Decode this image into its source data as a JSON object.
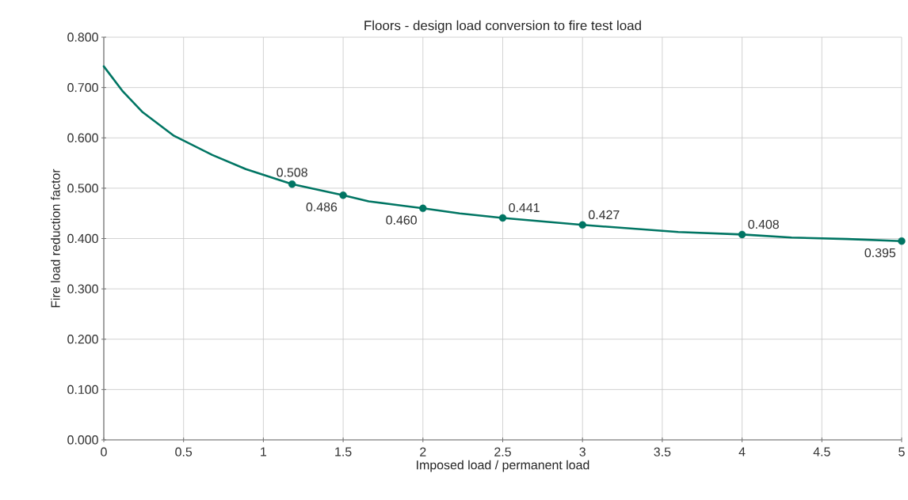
{
  "chart_data": {
    "type": "line",
    "title": "Floors - design load conversion to fire test load",
    "xlabel": "Imposed load / permanent load",
    "ylabel": "Fire load reduction factor",
    "series": [
      {
        "type": "line",
        "color": "#007563",
        "marker": "none",
        "x": [
          0,
          0.12,
          0.24,
          0.44,
          0.68,
          0.89,
          1.18,
          1.5,
          1.66,
          2.0,
          2.23,
          2.5,
          3.0,
          3.6,
          4.0,
          4.31,
          4.66,
          5.0
        ],
        "values": [
          0.742,
          0.692,
          0.652,
          0.604,
          0.566,
          0.538,
          0.508,
          0.486,
          0.474,
          0.46,
          0.45,
          0.441,
          0.427,
          0.413,
          0.408,
          0.402,
          0.399,
          0.395
        ]
      },
      {
        "type": "scatter",
        "color": "#007563",
        "marker": "circle",
        "data_labels": true,
        "x": [
          1.18,
          1.5,
          2.0,
          2.5,
          3.0,
          4.0,
          5.0
        ],
        "values": [
          0.508,
          0.486,
          0.46,
          0.441,
          0.427,
          0.408,
          0.395
        ],
        "value_labels": [
          "0.508",
          "0.486",
          "0.460",
          "0.441",
          "0.427",
          "0.408",
          "0.395"
        ]
      }
    ],
    "xlim": [
      0,
      5
    ],
    "xticks": [
      0,
      0.5,
      1,
      1.5,
      2,
      2.5,
      3,
      3.5,
      4,
      4.5,
      5
    ],
    "ylim": [
      0,
      0.8
    ],
    "yticks": [
      {
        "value": 0,
        "label": "0.000"
      },
      {
        "value": 0.1,
        "label": "0.100"
      },
      {
        "value": 0.2,
        "label": "0.200"
      },
      {
        "value": 0.3,
        "label": "0.300"
      },
      {
        "value": 0.4,
        "label": "0.400"
      },
      {
        "value": 0.5,
        "label": "0.500"
      },
      {
        "value": 0.6,
        "label": "0.600"
      },
      {
        "value": 0.7,
        "label": "0.700"
      },
      {
        "value": 0.8,
        "label": "0.800"
      }
    ],
    "grid": true,
    "legend": false
  }
}
